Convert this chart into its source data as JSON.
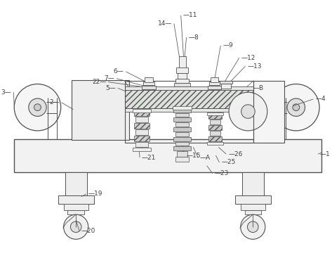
{
  "bg": "#ffffff",
  "lc": "#505050",
  "figw": 4.73,
  "figh": 3.67,
  "dpi": 100,
  "label_fs": 6.5,
  "label_color": "#404040"
}
